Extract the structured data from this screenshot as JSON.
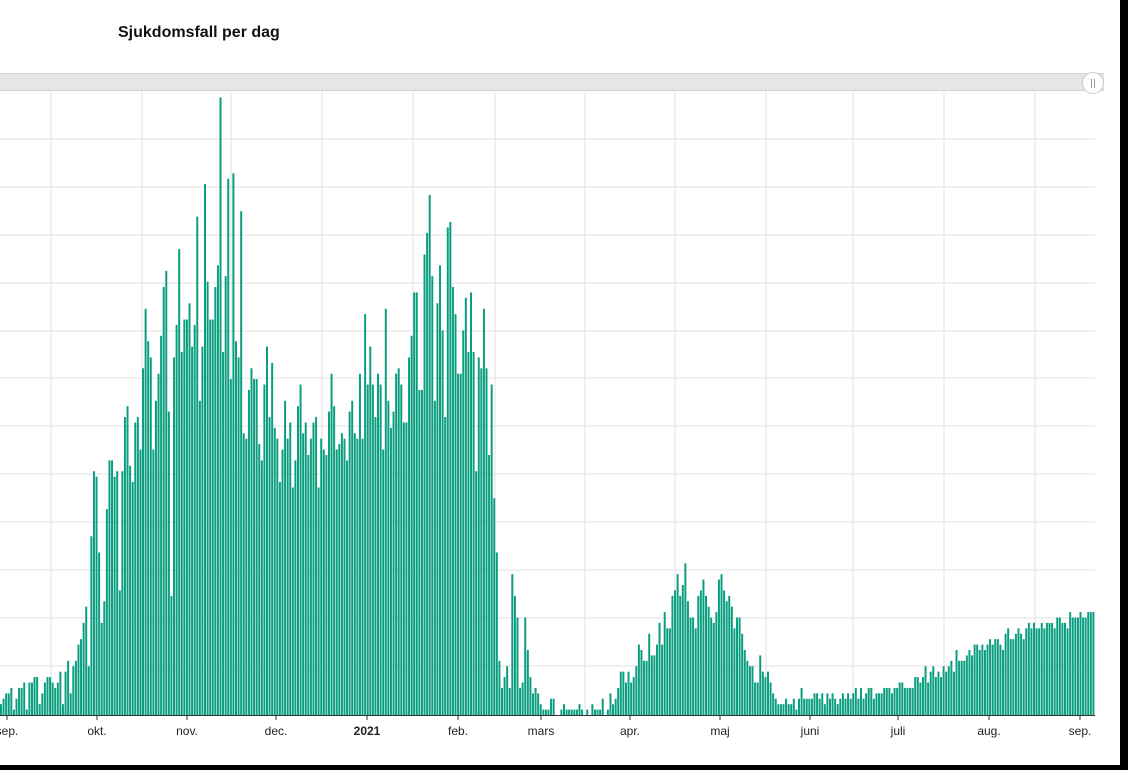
{
  "title": "Sjukdomsfall per dag",
  "colors": {
    "bar": "#0a9e80",
    "grid": "#e2e2e2",
    "axis": "#333333"
  },
  "chart_data": {
    "type": "bar",
    "title": "Sjukdomsfall per dag",
    "xlabel": "",
    "ylabel": "",
    "grid": true,
    "x_ticks": [
      "sep.",
      "okt.",
      "nov.",
      "dec.",
      "2021",
      "feb.",
      "mars",
      "apr.",
      "maj",
      "juni",
      "juli",
      "aug.",
      "sep."
    ],
    "series": [
      {
        "values": [
          2,
          3,
          4,
          4,
          5,
          1,
          3,
          5,
          5,
          6,
          1,
          6,
          6,
          7,
          7,
          2,
          4,
          6,
          7,
          7,
          6,
          5,
          6,
          8,
          2,
          8,
          10,
          4,
          9,
          10,
          13,
          14,
          17,
          20,
          9,
          33,
          45,
          44,
          30,
          17,
          21,
          38,
          47,
          47,
          44,
          45,
          23,
          45,
          55,
          57,
          46,
          43,
          54,
          55,
          49,
          64,
          75,
          69,
          66,
          49,
          58,
          63,
          70,
          79,
          82,
          56,
          22,
          66,
          72,
          86,
          67,
          73,
          73,
          76,
          68,
          72,
          92,
          58,
          68,
          98,
          80,
          73,
          73,
          79,
          83,
          114,
          67,
          81,
          99,
          62,
          100,
          69,
          66,
          93,
          52,
          51,
          60,
          64,
          62,
          62,
          50,
          47,
          61,
          68,
          55,
          65,
          53,
          51,
          43,
          49,
          58,
          51,
          54,
          42,
          47,
          57,
          61,
          52,
          54,
          48,
          51,
          54,
          55,
          42,
          51,
          49,
          48,
          56,
          63,
          57,
          49,
          50,
          52,
          51,
          47,
          56,
          58,
          52,
          51,
          63,
          51,
          74,
          61,
          68,
          61,
          55,
          63,
          61,
          49,
          75,
          58,
          53,
          56,
          63,
          64,
          61,
          54,
          54,
          66,
          70,
          78,
          78,
          60,
          60,
          85,
          89,
          96,
          81,
          58,
          76,
          83,
          71,
          55,
          90,
          91,
          79,
          74,
          63,
          63,
          71,
          77,
          67,
          78,
          67,
          45,
          66,
          64,
          75,
          64,
          48,
          61,
          40,
          30,
          10,
          5,
          7,
          9,
          5,
          26,
          22,
          18,
          5,
          6,
          18,
          12,
          7,
          4,
          5,
          4,
          2,
          1,
          1,
          1,
          3,
          3,
          0,
          0,
          1,
          2,
          1,
          1,
          1,
          1,
          1,
          2,
          1,
          0,
          1,
          0,
          2,
          1,
          1,
          1,
          3,
          0,
          1,
          4,
          2,
          3,
          5,
          8,
          8,
          6,
          8,
          6,
          7,
          9,
          13,
          12,
          10,
          10,
          15,
          11,
          11,
          13,
          17,
          13,
          19,
          16,
          16,
          22,
          23,
          26,
          22,
          24,
          28,
          21,
          18,
          18,
          16,
          22,
          23,
          25,
          22,
          20,
          18,
          17,
          19,
          25,
          26,
          23,
          21,
          22,
          20,
          16,
          18,
          18,
          15,
          12,
          10,
          9,
          9,
          6,
          6,
          11,
          8,
          7,
          8,
          6,
          4,
          3,
          2,
          2,
          2,
          3,
          2,
          2,
          3,
          1,
          3,
          5,
          3,
          3,
          3,
          3,
          4,
          4,
          3,
          4,
          2,
          4,
          3,
          4,
          3,
          2,
          3,
          4,
          3,
          4,
          3,
          4,
          5,
          3,
          5,
          3,
          4,
          5,
          5,
          3,
          4,
          4,
          4,
          5,
          5,
          5,
          4,
          5,
          5,
          6,
          6,
          5,
          5,
          5,
          5,
          7,
          7,
          6,
          7,
          9,
          6,
          8,
          9,
          7,
          8,
          7,
          9,
          8,
          9,
          10,
          8,
          12,
          10,
          10,
          10,
          11,
          12,
          11,
          13,
          13,
          12,
          13,
          12,
          13,
          14,
          13,
          14,
          14,
          13,
          12,
          15,
          16,
          14,
          14,
          15,
          16,
          15,
          14,
          16,
          17,
          16,
          17,
          16,
          16,
          17,
          16,
          17,
          17,
          17,
          16,
          18,
          18,
          17,
          17,
          16,
          19,
          18,
          18,
          18,
          19,
          18,
          18,
          19,
          19,
          19
        ]
      }
    ]
  }
}
